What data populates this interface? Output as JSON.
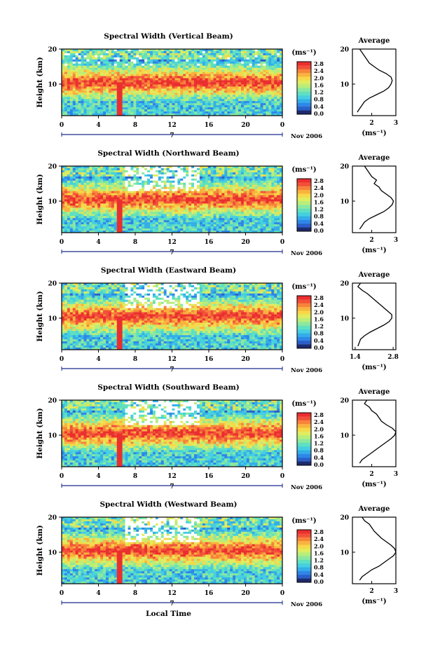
{
  "figure": {
    "xlabel": "Local Time",
    "date_label": "Nov 2006",
    "day_marker": "7",
    "colorbar_unit": "(ms⁻¹)",
    "average_title": "Average",
    "average_xlabel": "(ms⁻¹)",
    "ylabel": "Height (km)"
  },
  "colors": {
    "colormap": [
      "#1e2a6e",
      "#2b5fc7",
      "#2f86e8",
      "#34aee8",
      "#46cfe0",
      "#5fe0c0",
      "#8ce8a0",
      "#b8ee7a",
      "#e0ec60",
      "#f6d84a",
      "#f9b23f",
      "#f7833a",
      "#f2503a",
      "#ea2f2f"
    ]
  },
  "chart_data": [
    {
      "type": "heatmap",
      "title": "Spectral Width (Vertical Beam)",
      "xlabel": "",
      "ylabel": "Height (km)",
      "xlim": [
        0,
        24
      ],
      "ylim": [
        1,
        20
      ],
      "xticks": [
        "0",
        "4",
        "8",
        "12",
        "16",
        "20",
        "0"
      ],
      "yticks": [
        "10",
        "20"
      ],
      "colorbar": {
        "min": 0.0,
        "max": 3.0,
        "ticks": [
          "2.8",
          "2.4",
          "2.0",
          "1.6",
          "1.2",
          "0.8",
          "0.4",
          "0.0"
        ]
      },
      "description_values": {
        "core_height_km": [
          7,
          13
        ],
        "core_width": 2.8
      },
      "average_profile": {
        "xlim": [
          1.2,
          3.0
        ],
        "xticks": [
          "2",
          "3"
        ],
        "height": [
          2,
          3,
          4,
          5,
          6,
          7,
          8,
          9,
          10,
          11,
          12,
          13,
          14,
          15,
          16,
          17,
          18,
          19,
          20
        ],
        "width": [
          1.4,
          1.5,
          1.6,
          1.7,
          1.9,
          2.2,
          2.5,
          2.7,
          2.8,
          2.85,
          2.8,
          2.6,
          2.3,
          2.1,
          1.9,
          1.8,
          1.7,
          1.6,
          1.5
        ]
      }
    },
    {
      "type": "heatmap",
      "title": "Spectral Width (Northward Beam)",
      "xlabel": "",
      "ylabel": "Height (km)",
      "xlim": [
        0,
        24
      ],
      "ylim": [
        1,
        20
      ],
      "xticks": [
        "0",
        "4",
        "8",
        "12",
        "16",
        "20",
        "0"
      ],
      "yticks": [
        "10",
        "20"
      ],
      "colorbar": {
        "min": 0.0,
        "max": 3.0,
        "ticks": [
          "2.8",
          "2.4",
          "2.0",
          "1.6",
          "1.2",
          "0.8",
          "0.4",
          "0.0"
        ]
      },
      "average_profile": {
        "xlim": [
          1.2,
          3.0
        ],
        "xticks": [
          "2",
          "3"
        ],
        "height": [
          2,
          3,
          4,
          5,
          6,
          7,
          8,
          9,
          10,
          11,
          12,
          13,
          14,
          15,
          16,
          17,
          18,
          19,
          20
        ],
        "width": [
          1.5,
          1.6,
          1.7,
          1.9,
          2.2,
          2.5,
          2.7,
          2.85,
          2.9,
          2.8,
          2.6,
          2.4,
          2.3,
          2.1,
          2.2,
          2.0,
          1.9,
          1.8,
          1.7
        ]
      }
    },
    {
      "type": "heatmap",
      "title": "Spectral Width (Eastward Beam)",
      "xlabel": "",
      "ylabel": "Height (km)",
      "xlim": [
        0,
        24
      ],
      "ylim": [
        1,
        20
      ],
      "xticks": [
        "0",
        "4",
        "8",
        "12",
        "16",
        "20",
        "0"
      ],
      "yticks": [
        "10",
        "20"
      ],
      "colorbar": {
        "min": 0.0,
        "max": 3.0,
        "ticks": [
          "2.8",
          "2.4",
          "2.0",
          "1.6",
          "1.2",
          "0.8",
          "0.4",
          "0.0"
        ]
      },
      "average_profile": {
        "xlim": [
          1.3,
          2.9
        ],
        "xticks": [
          "1.4",
          "2.8"
        ],
        "height": [
          2,
          3,
          4,
          5,
          6,
          7,
          8,
          9,
          10,
          11,
          12,
          13,
          14,
          15,
          16,
          17,
          18,
          19,
          20
        ],
        "width": [
          1.5,
          1.55,
          1.6,
          1.75,
          1.95,
          2.2,
          2.45,
          2.65,
          2.75,
          2.75,
          2.6,
          2.45,
          2.3,
          2.15,
          2.0,
          1.85,
          1.65,
          1.5,
          1.6
        ]
      }
    },
    {
      "type": "heatmap",
      "title": "Spectral Width (Southward Beam)",
      "xlabel": "",
      "ylabel": "Height (km)",
      "xlim": [
        0,
        24
      ],
      "ylim": [
        1,
        20
      ],
      "xticks": [
        "0",
        "4",
        "8",
        "12",
        "16",
        "20",
        "0"
      ],
      "yticks": [
        "10",
        "20"
      ],
      "colorbar": {
        "min": 0.0,
        "max": 3.0,
        "ticks": [
          "2.8",
          "2.4",
          "2.0",
          "1.6",
          "1.2",
          "0.8",
          "0.4",
          "0.0"
        ]
      },
      "average_profile": {
        "xlim": [
          1.2,
          3.0
        ],
        "xticks": [
          "2",
          "3"
        ],
        "height": [
          2,
          3,
          4,
          5,
          6,
          7,
          8,
          9,
          10,
          11,
          12,
          13,
          14,
          15,
          16,
          17,
          18,
          19,
          20
        ],
        "width": [
          1.5,
          1.6,
          1.8,
          2.0,
          2.2,
          2.4,
          2.6,
          2.8,
          2.95,
          3.0,
          2.85,
          2.6,
          2.4,
          2.3,
          2.2,
          2.0,
          1.9,
          1.7,
          1.8
        ]
      }
    },
    {
      "type": "heatmap",
      "title": "Spectral Width (Westward Beam)",
      "xlabel": "Local Time",
      "ylabel": "Height (km)",
      "xlim": [
        0,
        24
      ],
      "ylim": [
        1,
        20
      ],
      "xticks": [
        "0",
        "4",
        "8",
        "12",
        "16",
        "20",
        "0"
      ],
      "yticks": [
        "10",
        "20"
      ],
      "colorbar": {
        "min": 0.0,
        "max": 3.0,
        "ticks": [
          "2.8",
          "2.4",
          "2.0",
          "1.6",
          "1.2",
          "0.8",
          "0.4",
          "0.0"
        ]
      },
      "average_profile": {
        "xlim": [
          1.2,
          3.0
        ],
        "xticks": [
          "2",
          "3"
        ],
        "height": [
          2,
          3,
          4,
          5,
          6,
          7,
          8,
          9,
          10,
          11,
          12,
          13,
          14,
          15,
          16,
          17,
          18,
          19,
          20
        ],
        "width": [
          1.5,
          1.6,
          1.8,
          2.0,
          2.3,
          2.5,
          2.7,
          2.9,
          3.0,
          2.95,
          2.8,
          2.6,
          2.4,
          2.25,
          2.1,
          2.0,
          1.9,
          1.7,
          1.6
        ]
      }
    }
  ]
}
